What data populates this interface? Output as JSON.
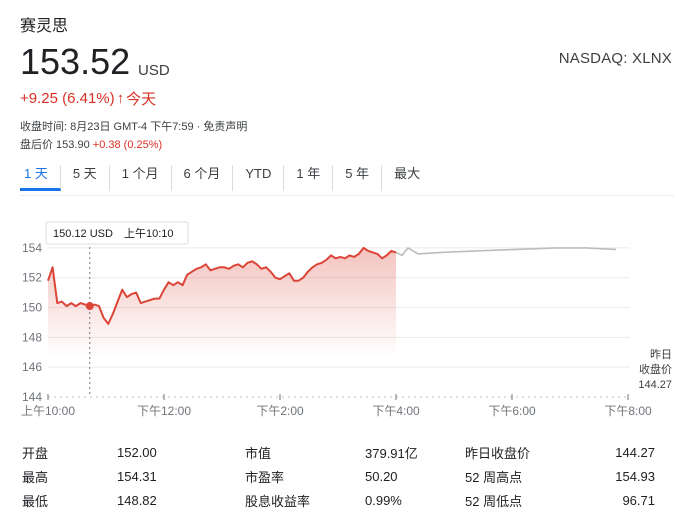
{
  "company": "赛灵思",
  "price": "153.52",
  "currency": "USD",
  "exchange": "NASDAQ: XLNX",
  "change": {
    "amount": "+9.25 (6.41%)",
    "arrow": "↑",
    "period": "今天"
  },
  "meta": {
    "close_info": "收盘时间: 8月23日 GMT-4 下午7:59 · 免责声明",
    "after_hours_label": "盘后价 153.90",
    "after_hours_change": "+0.38 (0.25%)"
  },
  "tabs": [
    "1 天",
    "5 天",
    "1 个月",
    "6 个月",
    "YTD",
    "1 年",
    "5 年",
    "最大"
  ],
  "tooltip": {
    "price": "150.12 USD",
    "time": "上午10:10"
  },
  "prev_close_label": [
    "昨日",
    "收盘价",
    "144.27"
  ],
  "colors": {
    "up": "#d93025",
    "accent": "#1a73e8",
    "line": "#db4437",
    "forecast": "#bdbdbd"
  },
  "chart_data": {
    "type": "area",
    "ylim": [
      144,
      155
    ],
    "yticks": [
      "154",
      "152",
      "150",
      "148",
      "146",
      "144"
    ],
    "xticks": [
      "上午10:00",
      "下午12:00",
      "下午2:00",
      "下午4:00",
      "下午6:00",
      "下午8:00"
    ],
    "series": [
      {
        "values": [
          151.8,
          152.7,
          150.3,
          150.4,
          150.1,
          150.3,
          150.1,
          150.3,
          150.2,
          150.1,
          150.2,
          150.1,
          149.3,
          148.9,
          149.6,
          150.4,
          151.2,
          150.7,
          150.9,
          151.0,
          150.3,
          150.4,
          150.5,
          150.6,
          150.6,
          151.2,
          151.7,
          151.5,
          151.7,
          151.5,
          152.2,
          152.4,
          152.6,
          152.7,
          152.9,
          152.5,
          152.6,
          152.7,
          152.7,
          152.6,
          152.8,
          152.9,
          152.7,
          153.0,
          153.1,
          152.9,
          152.6,
          152.7,
          152.4,
          152.0,
          151.9,
          152.1,
          152.3,
          151.8,
          151.8,
          152.0,
          152.4,
          152.7,
          152.9,
          153.0,
          153.2,
          153.5,
          153.3,
          153.4,
          153.3,
          153.5,
          153.4,
          153.6,
          154.0,
          153.8,
          153.7,
          153.6,
          153.3,
          153.5,
          153.8,
          153.7
        ]
      },
      {
        "values": [
          153.7,
          153.5,
          154.0,
          153.6,
          153.7,
          153.8,
          153.9,
          154.0,
          154.0,
          153.9
        ]
      }
    ]
  },
  "stats": [
    [
      "开盘",
      "152.00",
      "市值",
      "379.91亿",
      "昨日收盘价",
      "144.27"
    ],
    [
      "最高",
      "154.31",
      "市盈率",
      "50.20",
      "52 周高点",
      "154.93"
    ],
    [
      "最低",
      "148.82",
      "股息收益率",
      "0.99%",
      "52 周低点",
      "96.71"
    ]
  ]
}
